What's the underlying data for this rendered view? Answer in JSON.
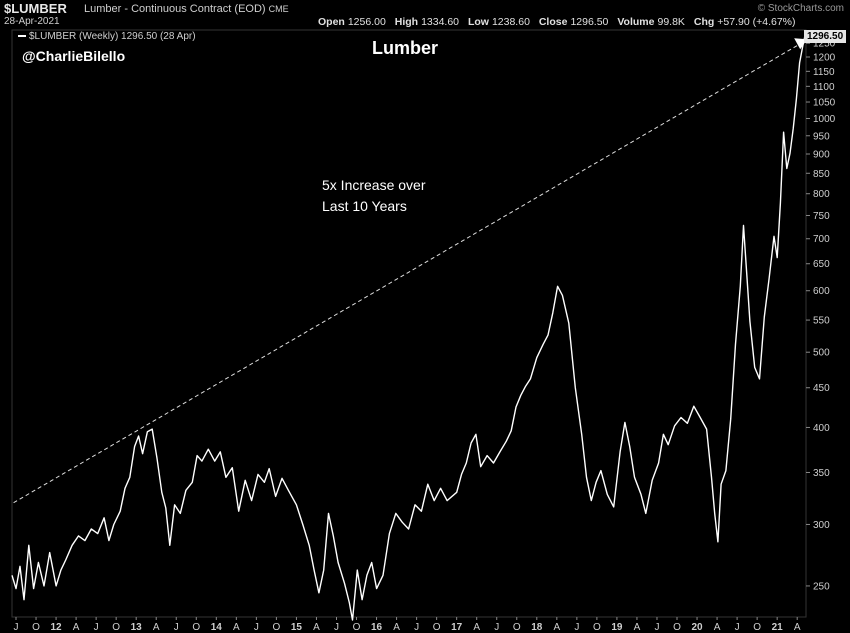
{
  "header": {
    "symbol": "$LUMBER",
    "description": "Lumber - Continuous Contract (EOD)",
    "exchange": "CME",
    "date": "28-Apr-2021",
    "brand": "© StockCharts.com",
    "open_label": "Open",
    "open": "1256.00",
    "high_label": "High",
    "high": "1334.60",
    "low_label": "Low",
    "low": "1238.60",
    "close_label": "Close",
    "close": "1296.50",
    "volume_label": "Volume",
    "volume": "99.8K",
    "chg_label": "Chg",
    "chg": "+57.90 (+4.67%)"
  },
  "legend_text": "$LUMBER (Weekly) 1296.50 (28 Apr)",
  "last_price_label": "1296.50",
  "chart_data": {
    "type": "line",
    "title": "Lumber",
    "handle": "@CharlieBilello",
    "annotation": [
      "5x Increase over",
      "Last 10 Years"
    ],
    "y_scale": "log",
    "ylim": [
      228,
      1300
    ],
    "yticks": [
      250,
      300,
      350,
      400,
      450,
      500,
      550,
      600,
      650,
      700,
      750,
      800,
      850,
      900,
      950,
      1000,
      1050,
      1100,
      1150,
      1200,
      1250
    ],
    "xlim": [
      2011.45,
      2021.36
    ],
    "xticks": [
      {
        "t": 2011.5,
        "label": "J"
      },
      {
        "t": 2011.75,
        "label": "O"
      },
      {
        "t": 2012.0,
        "label": "12"
      },
      {
        "t": 2012.25,
        "label": "A"
      },
      {
        "t": 2012.5,
        "label": "J"
      },
      {
        "t": 2012.75,
        "label": "O"
      },
      {
        "t": 2013.0,
        "label": "13"
      },
      {
        "t": 2013.25,
        "label": "A"
      },
      {
        "t": 2013.5,
        "label": "J"
      },
      {
        "t": 2013.75,
        "label": "O"
      },
      {
        "t": 2014.0,
        "label": "14"
      },
      {
        "t": 2014.25,
        "label": "A"
      },
      {
        "t": 2014.5,
        "label": "J"
      },
      {
        "t": 2014.75,
        "label": "O"
      },
      {
        "t": 2015.0,
        "label": "15"
      },
      {
        "t": 2015.25,
        "label": "A"
      },
      {
        "t": 2015.5,
        "label": "J"
      },
      {
        "t": 2015.75,
        "label": "O"
      },
      {
        "t": 2016.0,
        "label": "16"
      },
      {
        "t": 2016.25,
        "label": "A"
      },
      {
        "t": 2016.5,
        "label": "J"
      },
      {
        "t": 2016.75,
        "label": "O"
      },
      {
        "t": 2017.0,
        "label": "17"
      },
      {
        "t": 2017.25,
        "label": "A"
      },
      {
        "t": 2017.5,
        "label": "J"
      },
      {
        "t": 2017.75,
        "label": "O"
      },
      {
        "t": 2018.0,
        "label": "18"
      },
      {
        "t": 2018.25,
        "label": "A"
      },
      {
        "t": 2018.5,
        "label": "J"
      },
      {
        "t": 2018.75,
        "label": "O"
      },
      {
        "t": 2019.0,
        "label": "19"
      },
      {
        "t": 2019.25,
        "label": "A"
      },
      {
        "t": 2019.5,
        "label": "J"
      },
      {
        "t": 2019.75,
        "label": "O"
      },
      {
        "t": 2020.0,
        "label": "20"
      },
      {
        "t": 2020.25,
        "label": "A"
      },
      {
        "t": 2020.5,
        "label": "J"
      },
      {
        "t": 2020.75,
        "label": "O"
      },
      {
        "t": 2021.0,
        "label": "21"
      },
      {
        "t": 2021.25,
        "label": "A"
      }
    ],
    "series": [
      {
        "points": [
          [
            2011.45,
            258
          ],
          [
            2011.5,
            248
          ],
          [
            2011.55,
            265
          ],
          [
            2011.6,
            240
          ],
          [
            2011.66,
            282
          ],
          [
            2011.72,
            248
          ],
          [
            2011.78,
            268
          ],
          [
            2011.85,
            250
          ],
          [
            2011.92,
            276
          ],
          [
            2012.0,
            250
          ],
          [
            2012.06,
            262
          ],
          [
            2012.12,
            270
          ],
          [
            2012.2,
            282
          ],
          [
            2012.28,
            290
          ],
          [
            2012.36,
            286
          ],
          [
            2012.44,
            296
          ],
          [
            2012.52,
            292
          ],
          [
            2012.6,
            306
          ],
          [
            2012.66,
            286
          ],
          [
            2012.72,
            300
          ],
          [
            2012.8,
            312
          ],
          [
            2012.86,
            334
          ],
          [
            2012.92,
            345
          ],
          [
            2012.98,
            378
          ],
          [
            2013.03,
            390
          ],
          [
            2013.08,
            370
          ],
          [
            2013.14,
            395
          ],
          [
            2013.2,
            398
          ],
          [
            2013.26,
            365
          ],
          [
            2013.32,
            330
          ],
          [
            2013.37,
            315
          ],
          [
            2013.42,
            282
          ],
          [
            2013.48,
            318
          ],
          [
            2013.55,
            310
          ],
          [
            2013.62,
            332
          ],
          [
            2013.7,
            340
          ],
          [
            2013.76,
            368
          ],
          [
            2013.82,
            362
          ],
          [
            2013.9,
            375
          ],
          [
            2013.98,
            362
          ],
          [
            2014.05,
            372
          ],
          [
            2014.12,
            345
          ],
          [
            2014.2,
            355
          ],
          [
            2014.28,
            312
          ],
          [
            2014.36,
            342
          ],
          [
            2014.44,
            322
          ],
          [
            2014.52,
            348
          ],
          [
            2014.6,
            340
          ],
          [
            2014.66,
            354
          ],
          [
            2014.74,
            326
          ],
          [
            2014.82,
            344
          ],
          [
            2014.9,
            332
          ],
          [
            2015.0,
            318
          ],
          [
            2015.08,
            300
          ],
          [
            2015.16,
            282
          ],
          [
            2015.22,
            262
          ],
          [
            2015.28,
            245
          ],
          [
            2015.34,
            262
          ],
          [
            2015.4,
            310
          ],
          [
            2015.46,
            290
          ],
          [
            2015.52,
            268
          ],
          [
            2015.6,
            252
          ],
          [
            2015.66,
            238
          ],
          [
            2015.7,
            226
          ],
          [
            2015.76,
            262
          ],
          [
            2015.82,
            240
          ],
          [
            2015.88,
            258
          ],
          [
            2015.94,
            268
          ],
          [
            2016.0,
            248
          ],
          [
            2016.08,
            258
          ],
          [
            2016.16,
            292
          ],
          [
            2016.24,
            310
          ],
          [
            2016.32,
            302
          ],
          [
            2016.4,
            296
          ],
          [
            2016.48,
            318
          ],
          [
            2016.56,
            312
          ],
          [
            2016.64,
            338
          ],
          [
            2016.72,
            322
          ],
          [
            2016.8,
            334
          ],
          [
            2016.88,
            322
          ],
          [
            2017.0,
            330
          ],
          [
            2017.06,
            348
          ],
          [
            2017.12,
            360
          ],
          [
            2017.18,
            382
          ],
          [
            2017.24,
            392
          ],
          [
            2017.3,
            356
          ],
          [
            2017.38,
            368
          ],
          [
            2017.46,
            360
          ],
          [
            2017.54,
            372
          ],
          [
            2017.62,
            384
          ],
          [
            2017.68,
            396
          ],
          [
            2017.74,
            425
          ],
          [
            2017.8,
            440
          ],
          [
            2017.86,
            452
          ],
          [
            2017.92,
            462
          ],
          [
            2018.0,
            492
          ],
          [
            2018.08,
            512
          ],
          [
            2018.14,
            526
          ],
          [
            2018.2,
            562
          ],
          [
            2018.26,
            608
          ],
          [
            2018.32,
            592
          ],
          [
            2018.4,
            545
          ],
          [
            2018.48,
            450
          ],
          [
            2018.56,
            392
          ],
          [
            2018.62,
            345
          ],
          [
            2018.68,
            322
          ],
          [
            2018.74,
            340
          ],
          [
            2018.8,
            352
          ],
          [
            2018.88,
            328
          ],
          [
            2018.96,
            316
          ],
          [
            2019.04,
            372
          ],
          [
            2019.1,
            406
          ],
          [
            2019.16,
            378
          ],
          [
            2019.22,
            345
          ],
          [
            2019.3,
            328
          ],
          [
            2019.36,
            310
          ],
          [
            2019.44,
            342
          ],
          [
            2019.52,
            360
          ],
          [
            2019.58,
            392
          ],
          [
            2019.64,
            380
          ],
          [
            2019.72,
            402
          ],
          [
            2019.8,
            412
          ],
          [
            2019.88,
            405
          ],
          [
            2019.96,
            426
          ],
          [
            2020.04,
            412
          ],
          [
            2020.12,
            398
          ],
          [
            2020.18,
            345
          ],
          [
            2020.22,
            310
          ],
          [
            2020.26,
            285
          ],
          [
            2020.3,
            338
          ],
          [
            2020.36,
            352
          ],
          [
            2020.42,
            410
          ],
          [
            2020.48,
            512
          ],
          [
            2020.54,
            608
          ],
          [
            2020.58,
            728
          ],
          [
            2020.62,
            632
          ],
          [
            2020.66,
            548
          ],
          [
            2020.72,
            478
          ],
          [
            2020.78,
            462
          ],
          [
            2020.84,
            555
          ],
          [
            2020.9,
            622
          ],
          [
            2020.96,
            705
          ],
          [
            2021.0,
            662
          ],
          [
            2021.04,
            778
          ],
          [
            2021.08,
            960
          ],
          [
            2021.12,
            862
          ],
          [
            2021.16,
            902
          ],
          [
            2021.2,
            970
          ],
          [
            2021.24,
            1060
          ],
          [
            2021.28,
            1180
          ],
          [
            2021.32,
            1240
          ],
          [
            2021.36,
            1296.5
          ]
        ]
      }
    ],
    "trendline": {
      "from": [
        2011.47,
        320
      ],
      "to": [
        2021.3,
        1250
      ]
    }
  }
}
